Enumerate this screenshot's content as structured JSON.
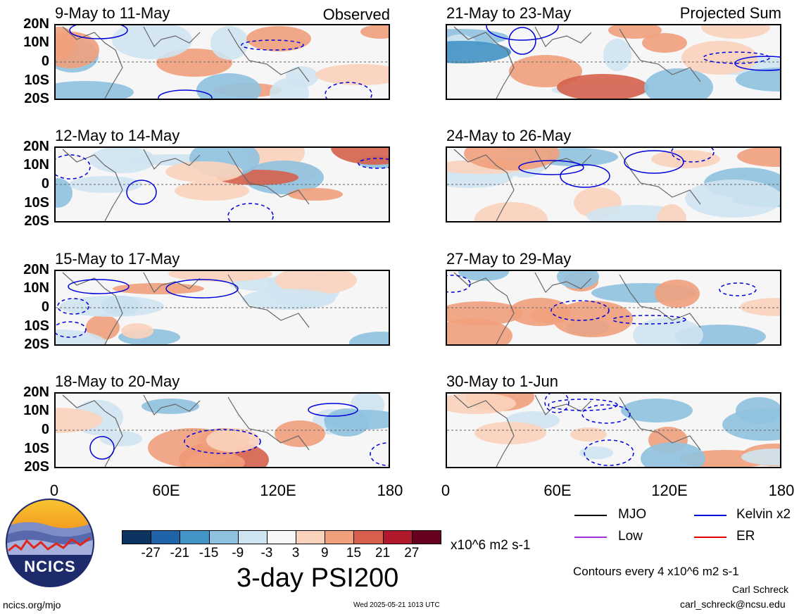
{
  "panels_left": [
    {
      "title": "9-May to 11-May",
      "tag": "Observed"
    },
    {
      "title": "12-May to 14-May",
      "tag": ""
    },
    {
      "title": "15-May to 17-May",
      "tag": ""
    },
    {
      "title": "18-May to 20-May",
      "tag": ""
    }
  ],
  "panels_right": [
    {
      "title": "21-May to 23-May",
      "tag": "Projected Sum"
    },
    {
      "title": "24-May to 26-May",
      "tag": ""
    },
    {
      "title": "27-May to 29-May",
      "tag": ""
    },
    {
      "title": "30-May to 1-Jun",
      "tag": ""
    }
  ],
  "lat_ticks": [
    "20N",
    "10N",
    "0",
    "10S",
    "20S"
  ],
  "lon_ticks": [
    "0",
    "60E",
    "120E",
    "180"
  ],
  "colorbar": {
    "labels": [
      "-27",
      "-21",
      "-15",
      "-9",
      "-3",
      "3",
      "9",
      "15",
      "21",
      "27"
    ],
    "colors": [
      "#0b3560",
      "#1f64a8",
      "#4394c7",
      "#8fc2e0",
      "#cfe4f1",
      "#f7f7f7",
      "#fbd3bd",
      "#f1a07c",
      "#d6604d",
      "#b2182b",
      "#67001f"
    ],
    "units": "x10^6 m2 s-1",
    "title": "3-day PSI200"
  },
  "legend": {
    "items": [
      {
        "label": "MJO",
        "color": "#000000"
      },
      {
        "label": "Kelvin x2",
        "color": "#0000dd"
      },
      {
        "label": "Low",
        "color": "#9b30d9"
      },
      {
        "label": "ER",
        "color": "#e00000"
      }
    ],
    "contour_note": "Contours every 4 x10^6 m2 s-1"
  },
  "logo": {
    "text": "NCICS"
  },
  "footer": {
    "url": "ncics.org/mjo",
    "timestamp": "Wed 2025-05-21 1013 UTC",
    "author": "Carl Schreck",
    "email": "carl_schreck@ncsu.edu"
  }
}
